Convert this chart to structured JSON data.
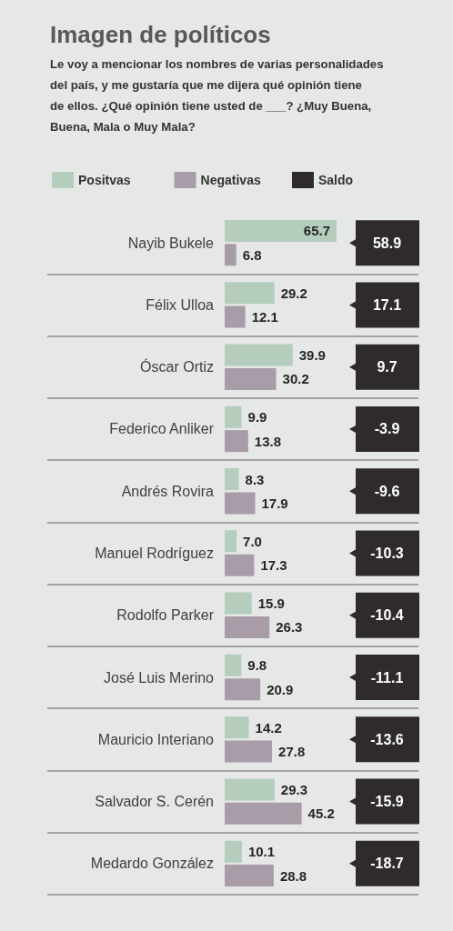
{
  "chart_data": [
    {
      "type": "bar",
      "orientation": "horizontal",
      "title": "Imagen de políticos",
      "subtitle": "Le voy a mencionar los nombres de varias personalidades del país, y me gustaría que me dijera qué opinión tiene de ellos. ¿Qué opinión tiene usted de ___? ¿Muy Buena, Buena, Mala o Muy Mala?",
      "categories": [
        "Nayib Bukele",
        "Félix Ulloa",
        "Óscar Ortiz",
        "Federico Anliker",
        "Andrés Rovira",
        "Manuel Rodríguez",
        "Rodolfo Parker",
        "José Luis Merino",
        "Mauricio Interiano",
        "Salvador S. Cerén",
        "Medardo González"
      ],
      "series": [
        {
          "name": "Positvas",
          "color": "#b5cdbd",
          "values": [
            65.7,
            29.2,
            39.9,
            9.9,
            8.3,
            7.0,
            15.9,
            9.8,
            14.2,
            29.3,
            10.1
          ],
          "value_labels": [
            "65.7",
            "29.2",
            "39.9",
            "9.9",
            "8.3",
            "7.0",
            "15.9",
            "9.8",
            "14.2",
            "29.3",
            "10.1"
          ]
        },
        {
          "name": "Negativas",
          "color": "#a99ca9",
          "values": [
            6.8,
            12.1,
            30.2,
            13.8,
            17.9,
            17.3,
            26.3,
            20.9,
            27.8,
            45.2,
            28.8
          ],
          "value_labels": [
            "6.8",
            "12.1",
            "30.2",
            "13.8",
            "17.9",
            "17.3",
            "26.3",
            "20.9",
            "27.8",
            "45.2",
            "28.8"
          ]
        }
      ],
      "legend": "top left",
      "grid": "y"
    },
    {
      "type": "other",
      "series": [
        {
          "name": "Saldo",
          "color": "#2f2b2b",
          "values": [
            58.9,
            17.1,
            9.7,
            -3.9,
            -9.6,
            -10.3,
            -10.4,
            -11.1,
            -13.6,
            -15.9,
            -18.7
          ]
        }
      ],
      "data_labels": true,
      "legend": "top left"
    }
  ]
}
